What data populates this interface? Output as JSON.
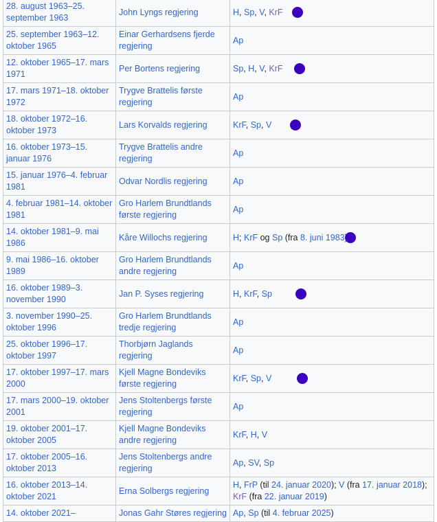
{
  "colors": {
    "link": "#3366cc",
    "visited": "#795cb2",
    "dot": "#3c00bf"
  },
  "rows": [
    {
      "period": "28. august 1963–25. september 1963",
      "government": "John Lyngs regjering",
      "parties": [
        {
          "t": "H",
          "k": "link"
        },
        {
          "t": ", ",
          "k": "text"
        },
        {
          "t": "Sp",
          "k": "link"
        },
        {
          "t": ", ",
          "k": "text"
        },
        {
          "t": "V",
          "k": "link"
        },
        {
          "t": ", ",
          "k": "text"
        },
        {
          "t": "KrF",
          "k": "visited"
        }
      ],
      "dot": true
    },
    {
      "period": "25. september 1963–12. oktober 1965",
      "government": "Einar Gerhardsens fjerde regjering",
      "parties": [
        {
          "t": "Ap",
          "k": "link"
        }
      ]
    },
    {
      "period": "12. oktober 1965–17. mars 1971",
      "government": "Per Bortens regjering",
      "parties": [
        {
          "t": "Sp",
          "k": "link"
        },
        {
          "t": ", ",
          "k": "text"
        },
        {
          "t": "H",
          "k": "link"
        },
        {
          "t": ", ",
          "k": "text"
        },
        {
          "t": "V",
          "k": "link"
        },
        {
          "t": ", ",
          "k": "text"
        },
        {
          "t": "KrF",
          "k": "visited"
        }
      ],
      "dot": true
    },
    {
      "period": "17. mars 1971–18. oktober 1972",
      "government": "Trygve Brattelis første regjering",
      "parties": [
        {
          "t": "Ap",
          "k": "link"
        }
      ]
    },
    {
      "period": "18. oktober 1972–16. oktober 1973",
      "government": "Lars Korvalds regjering",
      "parties": [
        {
          "t": "KrF",
          "k": "link"
        },
        {
          "t": ", ",
          "k": "text"
        },
        {
          "t": "Sp",
          "k": "link"
        },
        {
          "t": ", ",
          "k": "text"
        },
        {
          "t": "V",
          "k": "link"
        }
      ],
      "dot": true
    },
    {
      "period": "16. oktober 1973–15. januar 1976",
      "government": "Trygve Brattelis andre regjering",
      "parties": [
        {
          "t": "Ap",
          "k": "link"
        }
      ]
    },
    {
      "period": "15. januar 1976–4. februar 1981",
      "government": "Odvar Nordlis regjering",
      "parties": [
        {
          "t": "Ap",
          "k": "link"
        }
      ]
    },
    {
      "period": "4. februar 1981–14. oktober 1981",
      "government": "Gro Harlem Brundtlands første regjering",
      "parties": [
        {
          "t": "Ap",
          "k": "link"
        }
      ]
    },
    {
      "period": "14. oktober 1981–9. mai 1986",
      "government": "Kåre Willochs regjering",
      "parties": [
        {
          "t": "H",
          "k": "link"
        },
        {
          "t": "; ",
          "k": "text"
        },
        {
          "t": "KrF",
          "k": "link"
        },
        {
          "t": " og ",
          "k": "text"
        },
        {
          "t": "Sp",
          "k": "link"
        },
        {
          "t": " (fra ",
          "k": "text"
        },
        {
          "t": "8. juni 1983",
          "k": "link"
        },
        {
          "t": ")",
          "k": "text"
        }
      ],
      "dot": true,
      "short": true
    },
    {
      "period": "9. mai 1986–16. oktober 1989",
      "government": "Gro Harlem Brundtlands andre regjering",
      "parties": [
        {
          "t": "Ap",
          "k": "link"
        }
      ]
    },
    {
      "period": "16. oktober 1989–3. november 1990",
      "government": "Jan P. Syses regjering",
      "parties": [
        {
          "t": "H",
          "k": "link"
        },
        {
          "t": ", ",
          "k": "text"
        },
        {
          "t": "KrF",
          "k": "link"
        },
        {
          "t": ", ",
          "k": "text"
        },
        {
          "t": "Sp",
          "k": "link"
        }
      ],
      "dot": true
    },
    {
      "period": "3. november 1990–25. oktober 1996",
      "government": "Gro Harlem Brundtlands tredje regjering",
      "parties": [
        {
          "t": "Ap",
          "k": "link"
        }
      ]
    },
    {
      "period": "25. oktober 1996–17. oktober 1997",
      "government": "Thorbjørn Jaglands regjering",
      "parties": [
        {
          "t": "Ap",
          "k": "link"
        }
      ]
    },
    {
      "period": "17. oktober 1997–17. mars 2000",
      "government": "Kjell Magne Bondeviks første regjering",
      "parties": [
        {
          "t": "KrF",
          "k": "link"
        },
        {
          "t": ", ",
          "k": "text"
        },
        {
          "t": "Sp",
          "k": "link"
        },
        {
          "t": ", ",
          "k": "text"
        },
        {
          "t": "V",
          "k": "link"
        }
      ],
      "dot": true
    },
    {
      "period": "17. mars 2000–19. oktober 2001",
      "government": "Jens Stoltenbergs første regjering",
      "parties": [
        {
          "t": "Ap",
          "k": "link"
        }
      ]
    },
    {
      "period": "19. oktober 2001–17. oktober 2005",
      "government": "Kjell Magne Bondeviks andre regjering",
      "parties": [
        {
          "t": "KrF",
          "k": "link"
        },
        {
          "t": ", ",
          "k": "text"
        },
        {
          "t": "H",
          "k": "link"
        },
        {
          "t": ", ",
          "k": "text"
        },
        {
          "t": "V",
          "k": "link"
        }
      ]
    },
    {
      "period": "17. oktober 2005–16. oktober 2013",
      "government": "Jens Stoltenbergs andre regjering",
      "parties": [
        {
          "t": "Ap",
          "k": "link"
        },
        {
          "t": ", ",
          "k": "text"
        },
        {
          "t": "SV",
          "k": "link"
        },
        {
          "t": ", ",
          "k": "text"
        },
        {
          "t": "Sp",
          "k": "link"
        }
      ]
    },
    {
      "period": "16. oktober 2013–14. oktober 2021",
      "government": "Erna Solbergs regjering",
      "parties": [
        {
          "t": "H",
          "k": "link"
        },
        {
          "t": ", ",
          "k": "text"
        },
        {
          "t": "FrP",
          "k": "link"
        },
        {
          "t": " (til ",
          "k": "text"
        },
        {
          "t": "24. januar 2020",
          "k": "link"
        },
        {
          "t": "); ",
          "k": "text"
        },
        {
          "t": "V",
          "k": "link"
        },
        {
          "t": " (fra ",
          "k": "text"
        },
        {
          "t": "17. januar 2018",
          "k": "link"
        },
        {
          "t": "); ",
          "k": "text"
        },
        {
          "t": "KrF",
          "k": "visited"
        },
        {
          "t": " (fra ",
          "k": "text"
        },
        {
          "t": "22. januar 2019",
          "k": "link"
        },
        {
          "t": ")",
          "k": "text"
        }
      ]
    },
    {
      "period": "14. oktober 2021–",
      "government": "Jonas Gahr Støres regjering",
      "parties": [
        {
          "t": "Ap",
          "k": "link"
        },
        {
          "t": ", ",
          "k": "text"
        },
        {
          "t": "Sp",
          "k": "link"
        },
        {
          "t": " (til ",
          "k": "text"
        },
        {
          "t": "4. februar 2025",
          "k": "link"
        },
        {
          "t": ")",
          "k": "text"
        }
      ],
      "short": true
    }
  ]
}
